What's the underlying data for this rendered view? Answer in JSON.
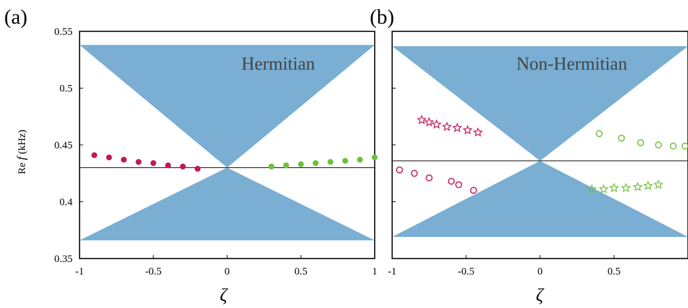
{
  "chart_data": [
    {
      "panel_label": "(a)",
      "type": "scatter",
      "annotation": "Hermitian",
      "xlabel": "ζ",
      "ylabel_prefix": "Re ",
      "ylabel_var": "f",
      "ylabel_unit": " (kHz)",
      "xlim": [
        -1,
        1
      ],
      "ylim": [
        0.35,
        0.55
      ],
      "xticks": [
        "-1",
        "-0.5",
        "0",
        "0.5",
        "1"
      ],
      "xtick_values": [
        -1,
        -0.5,
        0,
        0.5,
        1
      ],
      "yticks": [
        "0.35",
        "0.4",
        "0.45",
        "0.5",
        "0.55"
      ],
      "ytick_values": [
        0.35,
        0.4,
        0.45,
        0.5,
        0.55
      ],
      "band": {
        "color": "#7aaed3",
        "top": 0.538,
        "bottom": 0.366,
        "crossing_x": 0,
        "crossing_y": 0.43
      },
      "reference_line": 0.43,
      "series": [
        {
          "color": "#c2185b",
          "marker": "filled-circle",
          "points": [
            [
              -0.9,
              0.441
            ],
            [
              -0.8,
              0.439
            ],
            [
              -0.7,
              0.437
            ],
            [
              -0.6,
              0.435
            ],
            [
              -0.5,
              0.434
            ],
            [
              -0.4,
              0.432
            ],
            [
              -0.3,
              0.431
            ],
            [
              -0.2,
              0.429
            ]
          ]
        },
        {
          "color": "#6fbf3a",
          "marker": "filled-circle",
          "points": [
            [
              0.3,
              0.431
            ],
            [
              0.4,
              0.432
            ],
            [
              0.5,
              0.433
            ],
            [
              0.6,
              0.434
            ],
            [
              0.7,
              0.435
            ],
            [
              0.8,
              0.436
            ],
            [
              0.9,
              0.437
            ],
            [
              1.0,
              0.439
            ]
          ]
        }
      ]
    },
    {
      "panel_label": "(b)",
      "type": "scatter",
      "annotation": "Non-Hermitian",
      "xlabel": "ζ",
      "xlim": [
        -1,
        1
      ],
      "ylim": [
        0.35,
        0.55
      ],
      "xticks": [
        "-1",
        "-0.5",
        "0",
        "0.5"
      ],
      "xtick_values": [
        -1,
        -0.5,
        0,
        0.5
      ],
      "band": {
        "color": "#7aaed3",
        "top": 0.537,
        "bottom": 0.369,
        "crossing_x": 0,
        "crossing_y": 0.436
      },
      "reference_line": 0.436,
      "series": [
        {
          "color": "#c2185b",
          "marker": "open-star",
          "points": [
            [
              -0.8,
              0.472
            ],
            [
              -0.75,
              0.47
            ],
            [
              -0.7,
              0.468
            ],
            [
              -0.63,
              0.466
            ],
            [
              -0.56,
              0.465
            ],
            [
              -0.49,
              0.463
            ],
            [
              -0.42,
              0.461
            ]
          ]
        },
        {
          "color": "#c2185b",
          "marker": "open-circle",
          "points": [
            [
              -0.95,
              0.428
            ],
            [
              -0.85,
              0.425
            ],
            [
              -0.75,
              0.421
            ],
            [
              -0.6,
              0.418
            ],
            [
              -0.55,
              0.415
            ],
            [
              -0.45,
              0.41
            ]
          ]
        },
        {
          "color": "#6fbf3a",
          "marker": "open-circle",
          "points": [
            [
              0.4,
              0.46
            ],
            [
              0.55,
              0.456
            ],
            [
              0.68,
              0.452
            ],
            [
              0.8,
              0.45
            ],
            [
              0.9,
              0.449
            ],
            [
              0.98,
              0.449
            ]
          ]
        },
        {
          "color": "#6fbf3a",
          "marker": "open-star",
          "points": [
            [
              0.35,
              0.411
            ],
            [
              0.43,
              0.411
            ],
            [
              0.5,
              0.412
            ],
            [
              0.58,
              0.412
            ],
            [
              0.66,
              0.413
            ],
            [
              0.73,
              0.414
            ],
            [
              0.8,
              0.415
            ]
          ]
        }
      ]
    }
  ]
}
